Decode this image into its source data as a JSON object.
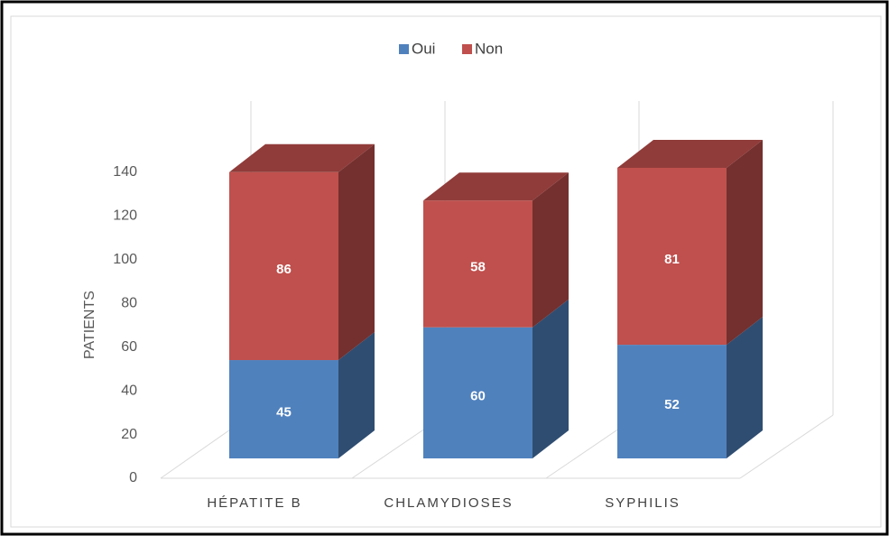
{
  "chart_data": {
    "type": "bar3d_stacked",
    "y_label": "PATIENTS",
    "categories": [
      "HÉPATITE B",
      "CHLAMYDIOSES",
      "SYPHILIS"
    ],
    "series": [
      {
        "name": "Oui",
        "color": "#4f81bd",
        "values": [
          45,
          60,
          52
        ]
      },
      {
        "name": "Non",
        "color": "#c0504d",
        "values": [
          86,
          58,
          81
        ]
      }
    ],
    "ylim": [
      0,
      140
    ],
    "yticks": [
      0,
      20,
      40,
      60,
      80,
      100,
      120,
      140
    ],
    "legend": "top"
  }
}
